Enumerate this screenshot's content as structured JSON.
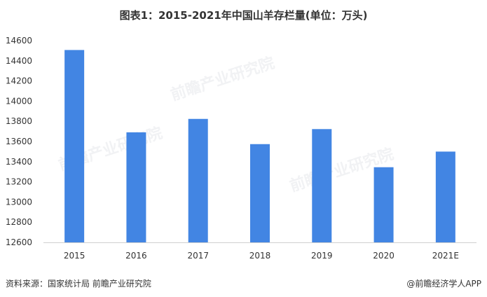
{
  "chart_data": {
    "type": "bar",
    "title": "图表1：2015-2021年中国山羊存栏量(单位：万头)",
    "categories": [
      "2015",
      "2016",
      "2017",
      "2018",
      "2019",
      "2020",
      "2021E"
    ],
    "values": [
      14507,
      13691,
      13824,
      13574,
      13723,
      13345,
      13500
    ],
    "ylim": [
      12600,
      14600
    ],
    "yticks": [
      12600,
      12800,
      13000,
      13200,
      13400,
      13600,
      13800,
      14000,
      14200,
      14400,
      14600
    ],
    "grid": false,
    "bar_color": "#4285e3"
  },
  "footer": {
    "source": "资料来源：国家统计局 前瞻产业研究院",
    "brand": "@前瞻经济学人APP"
  },
  "watermark": "前瞻产业研究院"
}
